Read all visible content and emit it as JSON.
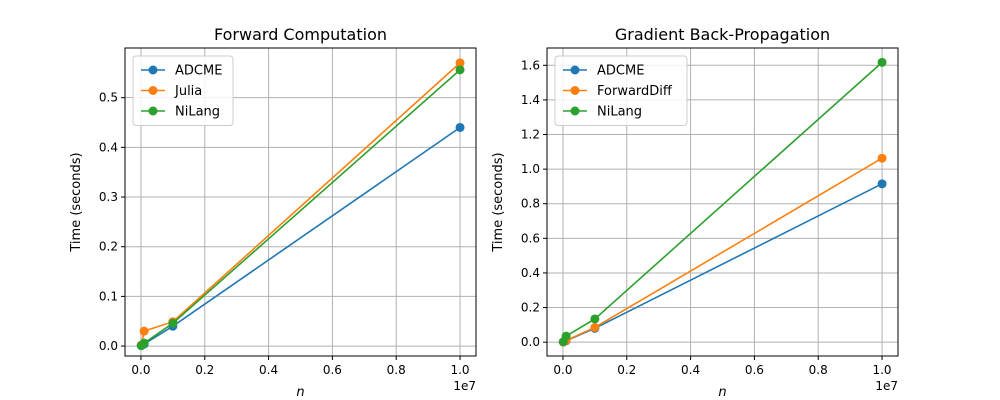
{
  "chart_data": [
    {
      "type": "line",
      "title": "Forward Computation",
      "xlabel": "n",
      "ylabel": "Time (seconds)",
      "x_multiplier_label": "1e7",
      "xlim": [
        -0.05,
        1.05
      ],
      "ylim": [
        -0.02,
        0.6
      ],
      "xticks": [
        0.0,
        0.2,
        0.4,
        0.6,
        0.8,
        1.0
      ],
      "xtick_labels": [
        "0.0",
        "0.2",
        "0.4",
        "0.6",
        "0.8",
        "1.0"
      ],
      "yticks": [
        0.0,
        0.1,
        0.2,
        0.3,
        0.4,
        0.5
      ],
      "ytick_labels": [
        "0.0",
        "0.1",
        "0.2",
        "0.3",
        "0.4",
        "0.5"
      ],
      "grid": true,
      "legend_position": "top-left",
      "x": [
        0.001,
        0.01,
        0.1,
        1.0
      ],
      "series": [
        {
          "name": "ADCME",
          "color": "#1f77b4",
          "values": [
            0.001,
            0.004,
            0.04,
            0.44
          ]
        },
        {
          "name": "Julia",
          "color": "#ff7f0e",
          "values": [
            0.002,
            0.03,
            0.049,
            0.57
          ]
        },
        {
          "name": "NiLang",
          "color": "#2ca02c",
          "values": [
            0.001,
            0.006,
            0.046,
            0.556
          ]
        }
      ]
    },
    {
      "type": "line",
      "title": "Gradient Back-Propagation",
      "xlabel": "n",
      "ylabel": "Time (seconds)",
      "x_multiplier_label": "1e7",
      "xlim": [
        -0.05,
        1.05
      ],
      "ylim": [
        -0.08,
        1.7
      ],
      "xticks": [
        0.0,
        0.2,
        0.4,
        0.6,
        0.8,
        1.0
      ],
      "xtick_labels": [
        "0.0",
        "0.2",
        "0.4",
        "0.6",
        "0.8",
        "1.0"
      ],
      "yticks": [
        0.0,
        0.2,
        0.4,
        0.6,
        0.8,
        1.0,
        1.2,
        1.4,
        1.6
      ],
      "ytick_labels": [
        "0.0",
        "0.2",
        "0.4",
        "0.6",
        "0.8",
        "1.0",
        "1.2",
        "1.4",
        "1.6"
      ],
      "grid": true,
      "legend_position": "top-left",
      "x": [
        0.001,
        0.01,
        0.1,
        1.0
      ],
      "series": [
        {
          "name": "ADCME",
          "color": "#1f77b4",
          "values": [
            0.001,
            0.008,
            0.08,
            0.915
          ]
        },
        {
          "name": "ForwardDiff",
          "color": "#ff7f0e",
          "values": [
            0.001,
            0.01,
            0.085,
            1.063
          ]
        },
        {
          "name": "NiLang",
          "color": "#2ca02c",
          "values": [
            0.002,
            0.035,
            0.134,
            1.617
          ]
        }
      ]
    }
  ]
}
